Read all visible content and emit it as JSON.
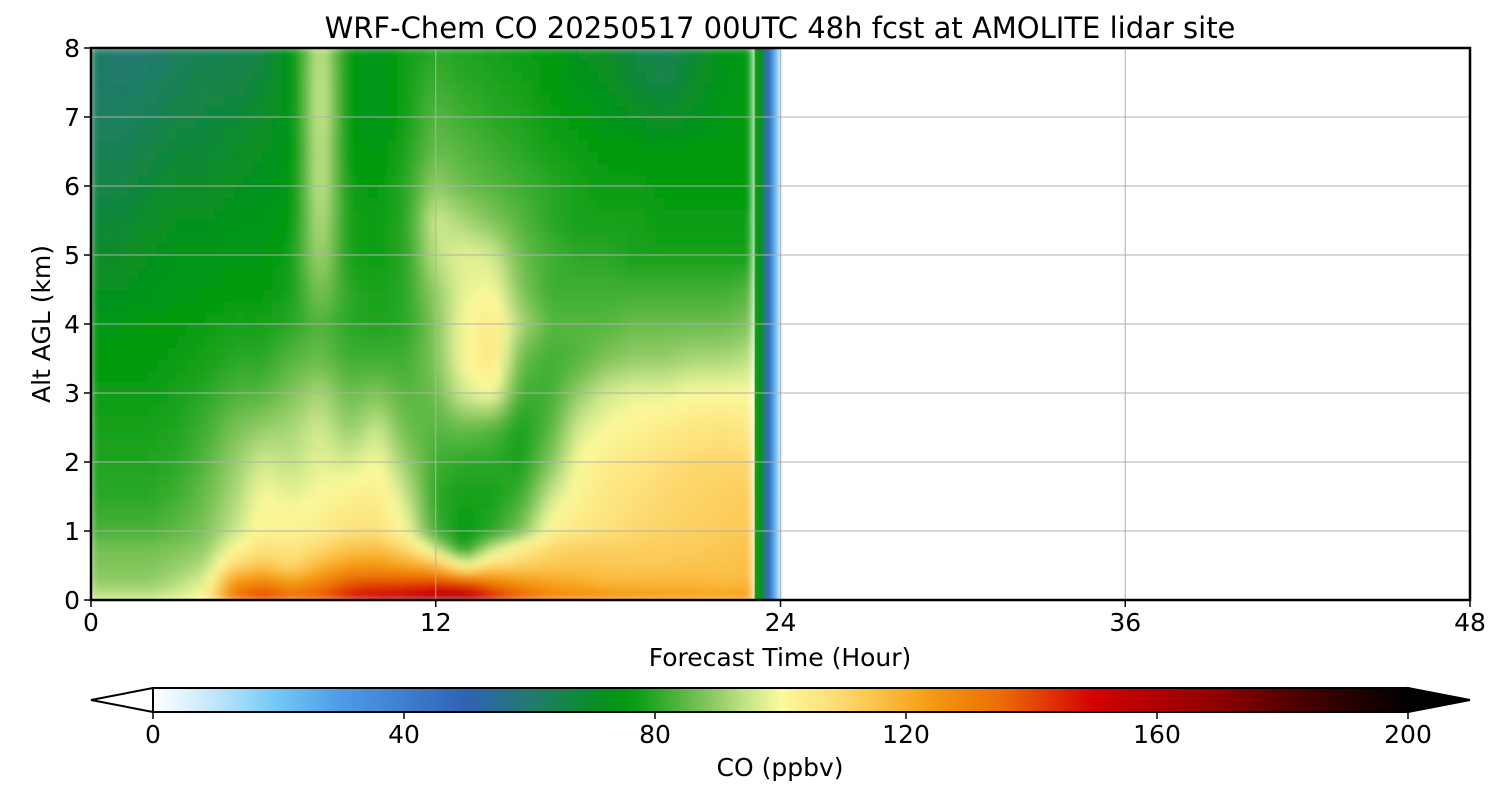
{
  "chart_data": {
    "type": "heatmap",
    "title": "WRF-Chem CO  20250517 00UTC 48h fcst at AMOLITE lidar site",
    "xlabel": "Forecast Time (Hour)",
    "ylabel": "Alt AGL (km)",
    "xlim": [
      0,
      48
    ],
    "ylim": [
      0,
      8
    ],
    "xticks": [
      0,
      12,
      24,
      36,
      48
    ],
    "yticks": [
      0,
      1,
      2,
      3,
      4,
      5,
      6,
      7,
      8
    ],
    "grid": true,
    "data_valid_until_hour": 24,
    "x": [
      0,
      1,
      2,
      3,
      4,
      5,
      6,
      7,
      8,
      9,
      10,
      11,
      12,
      13,
      14,
      15,
      16,
      17,
      18,
      19,
      20,
      21,
      22,
      23
    ],
    "y": [
      0,
      0.25,
      0.5,
      0.75,
      1,
      1.5,
      2,
      2.5,
      3,
      3.5,
      4,
      4.5,
      5,
      5.5,
      6,
      6.5,
      7,
      7.5,
      8
    ],
    "z": [
      [
        96,
        96,
        96,
        98,
        102,
        135,
        145,
        138,
        140,
        150,
        155,
        158,
        165,
        165,
        150,
        140,
        132,
        130,
        128,
        126,
        125,
        124,
        123,
        125
      ],
      [
        90,
        90,
        90,
        93,
        98,
        126,
        130,
        124,
        130,
        138,
        140,
        140,
        142,
        140,
        132,
        126,
        122,
        120,
        118,
        118,
        118,
        118,
        117,
        118
      ],
      [
        88,
        88,
        88,
        90,
        93,
        110,
        115,
        110,
        118,
        124,
        125,
        122,
        118,
        100,
        110,
        112,
        114,
        115,
        114,
        114,
        114,
        115,
        115,
        116
      ],
      [
        87,
        87,
        87,
        88,
        90,
        100,
        108,
        106,
        110,
        115,
        116,
        110,
        95,
        78,
        95,
        104,
        110,
        112,
        112,
        112,
        113,
        113,
        114,
        115
      ],
      [
        83,
        83,
        83,
        85,
        88,
        95,
        102,
        102,
        104,
        108,
        108,
        100,
        82,
        76,
        80,
        88,
        102,
        106,
        108,
        110,
        111,
        112,
        113,
        114
      ],
      [
        80,
        80,
        80,
        82,
        86,
        92,
        100,
        98,
        100,
        103,
        104,
        95,
        80,
        78,
        78,
        82,
        95,
        102,
        106,
        108,
        110,
        111,
        112,
        113
      ],
      [
        79,
        79,
        79,
        80,
        84,
        90,
        96,
        94,
        98,
        96,
        100,
        90,
        82,
        80,
        80,
        78,
        88,
        100,
        104,
        106,
        108,
        110,
        110,
        110
      ],
      [
        78,
        78,
        78,
        79,
        82,
        87,
        90,
        92,
        96,
        90,
        95,
        86,
        84,
        86,
        84,
        78,
        84,
        96,
        100,
        102,
        104,
        106,
        107,
        105
      ],
      [
        77,
        77,
        77,
        78,
        80,
        83,
        84,
        88,
        92,
        86,
        88,
        84,
        86,
        96,
        100,
        82,
        82,
        90,
        96,
        98,
        98,
        100,
        100,
        100
      ],
      [
        76,
        76,
        76,
        77,
        78,
        80,
        80,
        84,
        86,
        82,
        82,
        82,
        88,
        100,
        106,
        86,
        82,
        84,
        88,
        90,
        90,
        92,
        92,
        94
      ],
      [
        75,
        75,
        76,
        76,
        77,
        78,
        78,
        80,
        84,
        80,
        79,
        80,
        88,
        100,
        105,
        92,
        84,
        84,
        84,
        86,
        86,
        86,
        86,
        88
      ],
      [
        72,
        72,
        74,
        75,
        75,
        76,
        76,
        78,
        88,
        80,
        78,
        80,
        90,
        98,
        100,
        88,
        82,
        82,
        82,
        82,
        82,
        82,
        82,
        84
      ],
      [
        70,
        70,
        72,
        74,
        74,
        75,
        75,
        78,
        92,
        78,
        77,
        80,
        94,
        98,
        96,
        86,
        82,
        80,
        80,
        78,
        78,
        78,
        78,
        78
      ],
      [
        68,
        68,
        70,
        72,
        72,
        74,
        74,
        76,
        94,
        78,
        77,
        80,
        96,
        92,
        88,
        84,
        80,
        78,
        78,
        78,
        77,
        77,
        77,
        77
      ],
      [
        66,
        66,
        68,
        70,
        70,
        72,
        73,
        75,
        96,
        77,
        76,
        80,
        90,
        86,
        84,
        82,
        80,
        78,
        77,
        77,
        76,
        76,
        76,
        76
      ],
      [
        64,
        64,
        66,
        68,
        68,
        70,
        72,
        74,
        96,
        76,
        75,
        79,
        86,
        84,
        82,
        80,
        78,
        77,
        76,
        76,
        76,
        76,
        76,
        76
      ],
      [
        63,
        62,
        64,
        66,
        67,
        68,
        70,
        74,
        97,
        76,
        74,
        78,
        84,
        82,
        80,
        79,
        77,
        76,
        74,
        72,
        70,
        72,
        75,
        76
      ],
      [
        62,
        61,
        62,
        64,
        66,
        66,
        68,
        74,
        97,
        76,
        74,
        78,
        82,
        80,
        79,
        78,
        76,
        74,
        72,
        68,
        66,
        70,
        74,
        76
      ],
      [
        62,
        60,
        60,
        62,
        64,
        64,
        66,
        74,
        96,
        76,
        74,
        77,
        80,
        79,
        78,
        77,
        76,
        72,
        70,
        66,
        64,
        68,
        73,
        76
      ]
    ],
    "colorbar": {
      "label": "CO  (ppbv)",
      "min": 0,
      "max": 200,
      "ticks": [
        0,
        40,
        80,
        120,
        160,
        200
      ],
      "extend": "both",
      "color_stops": [
        {
          "v": 0,
          "c": "#ffffff"
        },
        {
          "v": 10,
          "c": "#bfe6fb"
        },
        {
          "v": 20,
          "c": "#6fc7f4"
        },
        {
          "v": 30,
          "c": "#4e9be6"
        },
        {
          "v": 50,
          "c": "#2f62b5"
        },
        {
          "v": 60,
          "c": "#227a70"
        },
        {
          "v": 70,
          "c": "#0a8c2a"
        },
        {
          "v": 76,
          "c": "#009a0e"
        },
        {
          "v": 82,
          "c": "#3fae33"
        },
        {
          "v": 88,
          "c": "#80c45a"
        },
        {
          "v": 95,
          "c": "#c8e68a"
        },
        {
          "v": 100,
          "c": "#fbf99a"
        },
        {
          "v": 108,
          "c": "#fde07a"
        },
        {
          "v": 116,
          "c": "#fbbf45"
        },
        {
          "v": 124,
          "c": "#f59a10"
        },
        {
          "v": 135,
          "c": "#ec6d05"
        },
        {
          "v": 150,
          "c": "#d40000"
        },
        {
          "v": 170,
          "c": "#8c0000"
        },
        {
          "v": 185,
          "c": "#400000"
        },
        {
          "v": 200,
          "c": "#000000"
        }
      ]
    }
  }
}
